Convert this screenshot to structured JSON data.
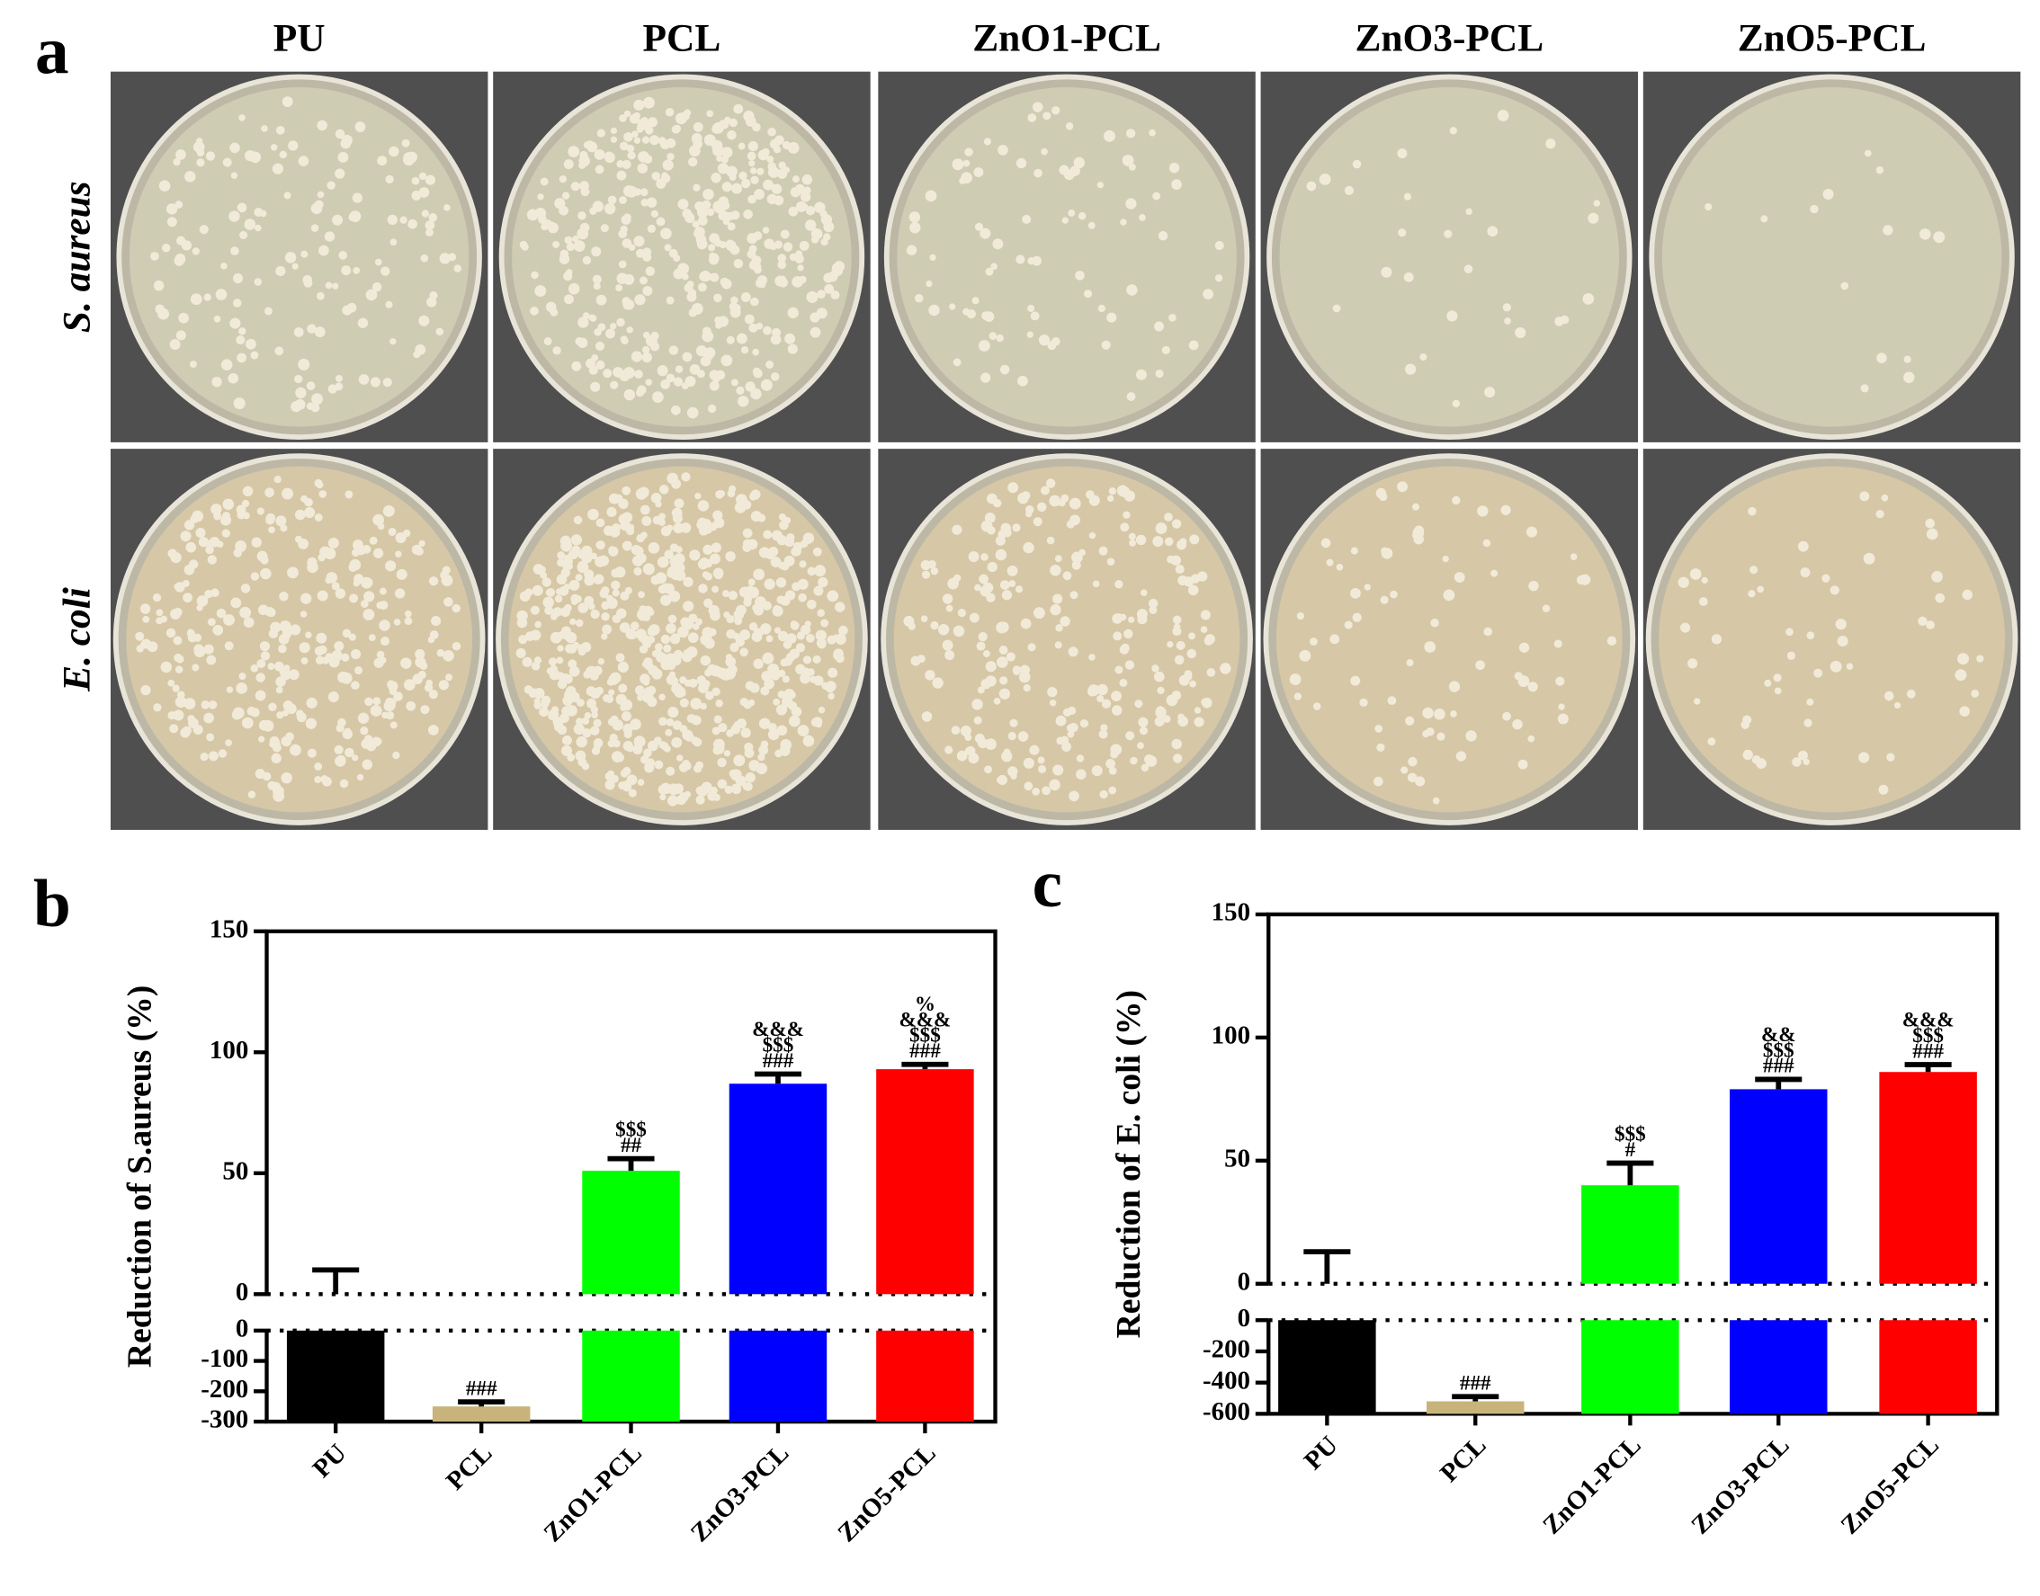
{
  "figure": {
    "panel_a": {
      "label": "a",
      "columns": [
        "PU",
        "PCL",
        "ZnO1-PCL",
        "ZnO3-PCL",
        "ZnO5-PCL"
      ],
      "rows": [
        "S. aureus",
        "E. coli"
      ]
    }
  },
  "chart_data": [
    {
      "type": "bar",
      "panel_label": "b",
      "ylabel": "Reduction of S.aureus (%)",
      "categories": [
        "PU",
        "PCL",
        "ZnO1-PCL",
        "ZnO3-PCL",
        "ZnO5-PCL"
      ],
      "values": [
        0,
        -250,
        51,
        87,
        93
      ],
      "errors": [
        10,
        15,
        5,
        4,
        2
      ],
      "colors": [
        "#000000",
        "#c8b47a",
        "#00ff00",
        "#0000ff",
        "#ff0000"
      ],
      "annotations": [
        [],
        [
          "###"
        ],
        [
          "$$$",
          "##"
        ],
        [
          "&&&",
          "$$$",
          "###"
        ],
        [
          "%",
          "&&&",
          "$$$",
          "###"
        ]
      ],
      "segments": [
        {
          "ylim": [
            0,
            150
          ],
          "yticks": [
            0,
            50,
            100,
            150
          ]
        },
        {
          "ylim": [
            -300,
            0
          ],
          "yticks": [
            0,
            -100,
            -200,
            -300
          ]
        }
      ]
    },
    {
      "type": "bar",
      "panel_label": "c",
      "ylabel": "Reduction of E. coli (%)",
      "categories": [
        "PU",
        "PCL",
        "ZnO1-PCL",
        "ZnO3-PCL",
        "ZnO5-PCL"
      ],
      "values": [
        0,
        -520,
        40,
        79,
        86
      ],
      "errors": [
        13,
        30,
        9,
        4,
        3
      ],
      "colors": [
        "#000000",
        "#c8b47a",
        "#00ff00",
        "#0000ff",
        "#ff0000"
      ],
      "annotations": [
        [],
        [
          "###"
        ],
        [
          "$$$",
          "#"
        ],
        [
          "&&",
          "$$$",
          "###"
        ],
        [
          "&&&",
          "$$$",
          "###"
        ]
      ],
      "segments": [
        {
          "ylim": [
            0,
            150
          ],
          "yticks": [
            0,
            50,
            100,
            150
          ]
        },
        {
          "ylim": [
            -600,
            0
          ],
          "yticks": [
            0,
            -200,
            -400,
            -600
          ]
        }
      ]
    }
  ]
}
